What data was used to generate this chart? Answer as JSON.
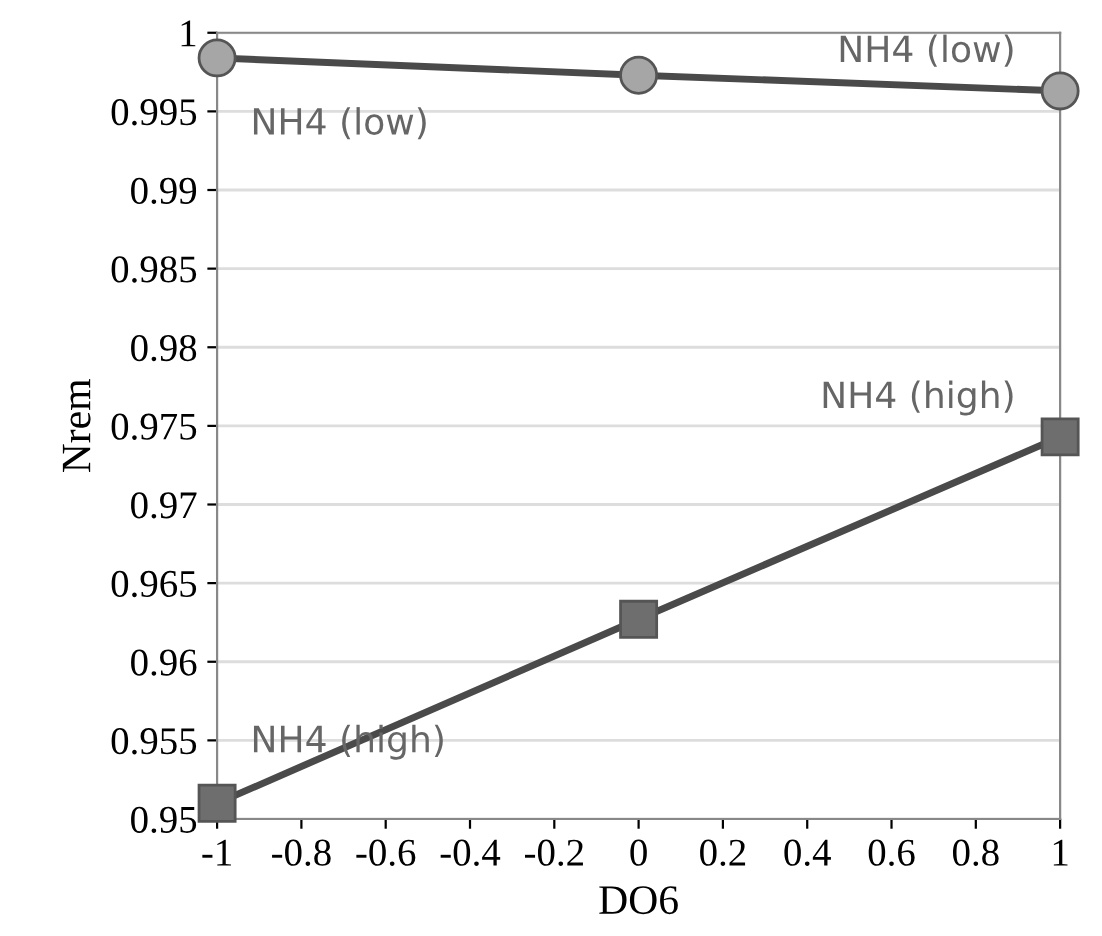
{
  "chart_data": {
    "type": "line",
    "xlabel": "DO6",
    "ylabel": "Nrem",
    "x": [
      -1,
      0,
      1
    ],
    "series": [
      {
        "name": "NH4 (low)",
        "color": "#a6a6a6",
        "marker": "circle",
        "values": [
          0.9984,
          0.9973,
          0.9963
        ]
      },
      {
        "name": "NH4 (high)",
        "color": "#6e6e6e",
        "marker": "square",
        "values": [
          0.951,
          0.9627,
          0.9743
        ]
      }
    ],
    "xlim": [
      -1,
      1
    ],
    "ylim": [
      0.95,
      1
    ],
    "xticks": [
      -1,
      -0.8,
      -0.6,
      -0.4,
      -0.2,
      0,
      0.2,
      0.4,
      0.6,
      0.8,
      1
    ],
    "yticks": [
      0.95,
      0.955,
      0.96,
      0.965,
      0.97,
      0.975,
      0.98,
      0.985,
      0.99,
      0.995,
      1
    ],
    "grid": "y"
  }
}
